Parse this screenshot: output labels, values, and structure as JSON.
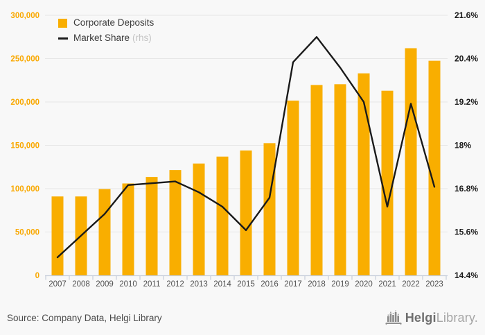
{
  "colors": {
    "background": "#F8F8F8",
    "bar": "#F9AE00",
    "line": "#1A1A1A",
    "left_axis_label": "#F9A800",
    "right_axis_label": "#1A1A1A",
    "year_label": "#4F4F4F",
    "gridline": "#E6E6E6",
    "axis_line": "#C7CEDB",
    "legend_text": "#3A3A3A",
    "legend_muted": "#C4C4C4",
    "footer_text": "#4A4A4A",
    "logo_gray": "#8A8A8A"
  },
  "legend": {
    "items": [
      {
        "label": "Corporate Deposits",
        "swatch": "bar-square"
      },
      {
        "label": "Market Share",
        "suffix": "(rhs)",
        "swatch": "line-dash"
      }
    ]
  },
  "footer": {
    "source": "Source: Company Data, Helgi Library",
    "logo_bold": "Helgi",
    "logo_light": "Library."
  },
  "chart_data": {
    "type": "bar",
    "categories": [
      "2007",
      "2008",
      "2009",
      "2010",
      "2011",
      "2012",
      "2013",
      "2014",
      "2015",
      "2016",
      "2017",
      "2018",
      "2019",
      "2020",
      "2021",
      "2022",
      "2023"
    ],
    "series": [
      {
        "name": "Corporate Deposits",
        "type": "bar",
        "axis": "left",
        "values": [
          91000,
          91000,
          99500,
          106000,
          113500,
          121500,
          129000,
          137000,
          144000,
          152500,
          201500,
          219500,
          220500,
          233000,
          213000,
          262000,
          247500
        ]
      },
      {
        "name": "Market Share (rhs)",
        "type": "line",
        "axis": "right",
        "values": [
          14.9,
          15.5,
          16.1,
          16.9,
          16.95,
          17.0,
          16.7,
          16.3,
          15.65,
          16.55,
          20.3,
          21.0,
          20.15,
          19.2,
          16.3,
          19.15,
          16.85
        ]
      }
    ],
    "left_axis": {
      "min": 0,
      "max": 300000,
      "tick_step": 50000,
      "tick_labels": [
        "0",
        "50,000",
        "100,000",
        "150,000",
        "200,000",
        "250,000",
        "300,000"
      ]
    },
    "right_axis": {
      "min": 14.4,
      "max": 21.6,
      "tick_step": 1.2,
      "tick_labels": [
        "14.4%",
        "15.6%",
        "16.8%",
        "18%",
        "19.2%",
        "20.4%",
        "21.6%"
      ]
    },
    "grid": true,
    "legend_position": "top-left"
  }
}
